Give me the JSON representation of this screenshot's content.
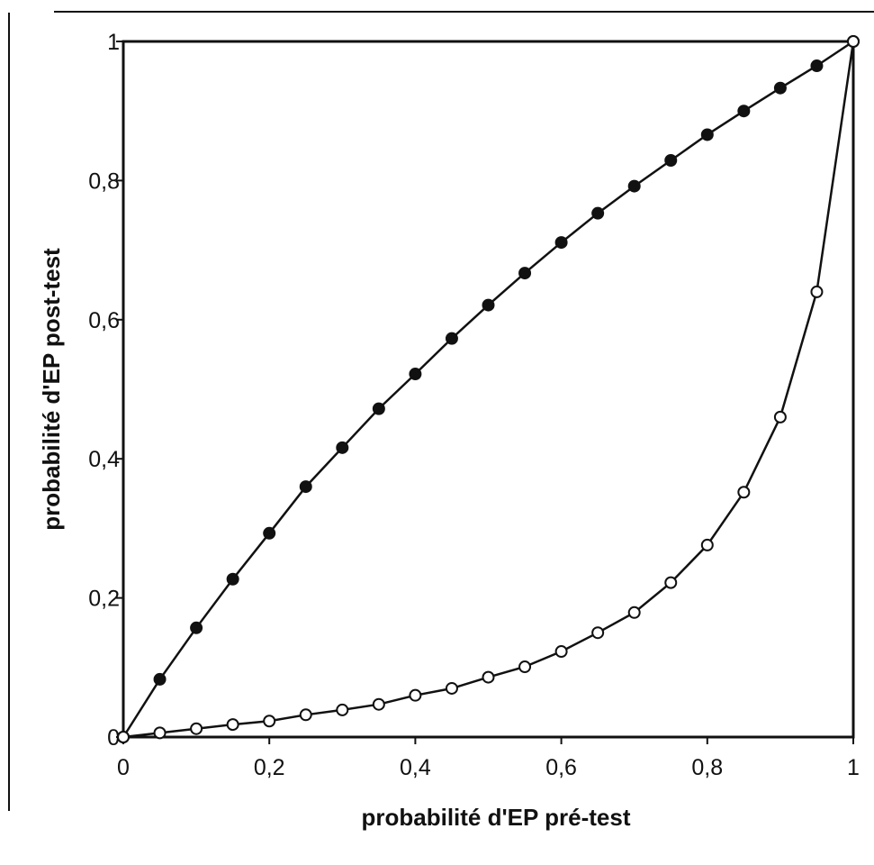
{
  "chart_data": {
    "type": "line",
    "title": "",
    "xlabel": "probabilité d'EP pré-test",
    "ylabel": "probabilité d'EP post-test",
    "xlim": [
      0,
      1
    ],
    "ylim": [
      0,
      1
    ],
    "grid": false,
    "legend": "none",
    "x_ticks": [
      {
        "value": 0,
        "label": "0"
      },
      {
        "value": 0.2,
        "label": "0,2"
      },
      {
        "value": 0.4,
        "label": "0,4"
      },
      {
        "value": 0.6,
        "label": "0,6"
      },
      {
        "value": 0.8,
        "label": "0,8"
      },
      {
        "value": 1,
        "label": "1"
      }
    ],
    "y_ticks": [
      {
        "value": 0,
        "label": "0"
      },
      {
        "value": 0.2,
        "label": "0,2"
      },
      {
        "value": 0.4,
        "label": "0,4"
      },
      {
        "value": 0.6,
        "label": "0,6"
      },
      {
        "value": 0.8,
        "label": "0,8"
      },
      {
        "value": 1,
        "label": "1"
      }
    ],
    "x": [
      0,
      0.05,
      0.1,
      0.15,
      0.2,
      0.25,
      0.3,
      0.35,
      0.4,
      0.45,
      0.5,
      0.55,
      0.6,
      0.65,
      0.7,
      0.75,
      0.8,
      0.85,
      0.9,
      0.95,
      1
    ],
    "series": [
      {
        "marker": "filled-circle",
        "color": "#111111",
        "values": [
          0,
          0.083,
          0.157,
          0.227,
          0.293,
          0.36,
          0.416,
          0.472,
          0.522,
          0.573,
          0.621,
          0.667,
          0.711,
          0.753,
          0.792,
          0.829,
          0.866,
          0.9,
          0.933,
          0.965,
          1
        ]
      },
      {
        "marker": "open-circle",
        "color": "#111111",
        "values": [
          0,
          0.006,
          0.012,
          0.018,
          0.023,
          0.032,
          0.039,
          0.047,
          0.06,
          0.07,
          0.086,
          0.101,
          0.123,
          0.15,
          0.179,
          0.222,
          0.276,
          0.352,
          0.46,
          0.64,
          1
        ]
      }
    ]
  }
}
